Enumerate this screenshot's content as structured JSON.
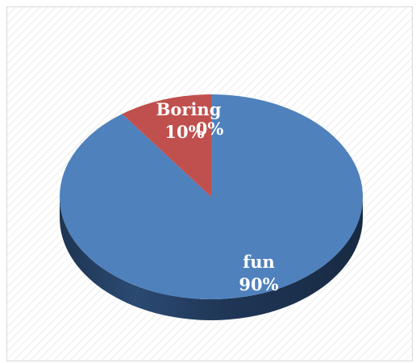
{
  "chart_data": {
    "type": "pie",
    "style": "3d",
    "slices": [
      {
        "category": "fun",
        "value": 90,
        "label": "90%",
        "color": "#4f81bd"
      },
      {
        "category": "Boring",
        "value": 10,
        "label": "10%",
        "color": "#c0504d"
      },
      {
        "category": "",
        "value": 0,
        "label": "0%",
        "color": "#9bbb59"
      }
    ]
  }
}
